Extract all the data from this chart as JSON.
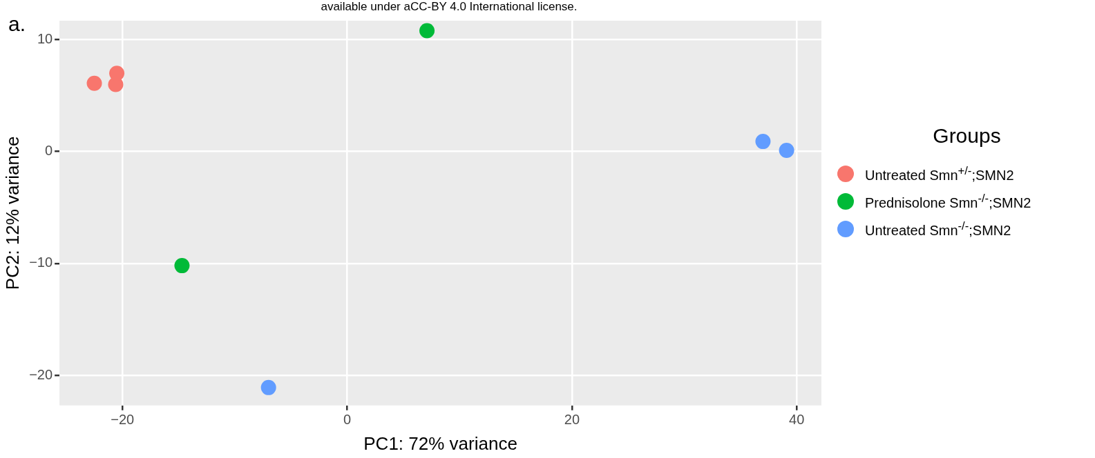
{
  "chart_data": {
    "type": "scatter",
    "xlabel": "PC1: 72% variance",
    "ylabel": "PC2: 12% variance",
    "legend_title": "Groups",
    "legend": "right",
    "marker": "circle",
    "grid": true,
    "annotations": [
      "a.",
      "available under aCC-BY 4.0 International license."
    ],
    "xlim": [
      -25.6,
      42.2
    ],
    "xticks": [
      -20,
      0,
      20,
      40
    ],
    "ylim": [
      -22.7,
      11.7
    ],
    "yticks": [
      -20,
      -10,
      0,
      10
    ],
    "series": [
      {
        "name": "Untreated Smn$^{+/-}$;SMN2",
        "color": "#f8766d",
        "x": [
          -22.5,
          -20.6,
          -20.5
        ],
        "values": [
          6.1,
          6.0,
          7.0
        ]
      },
      {
        "name": "Prednisolone Smn$^{-/-}$;SMN2",
        "color": "#00ba38",
        "x": [
          7.1,
          -14.7
        ],
        "values": [
          10.8,
          -10.2
        ]
      },
      {
        "name": "Untreated Smn$^{-/-}$;SMN2",
        "color": "#619cff",
        "x": [
          37.0,
          39.1,
          -7.0
        ],
        "values": [
          0.9,
          0.1,
          -21.1
        ]
      }
    ]
  }
}
